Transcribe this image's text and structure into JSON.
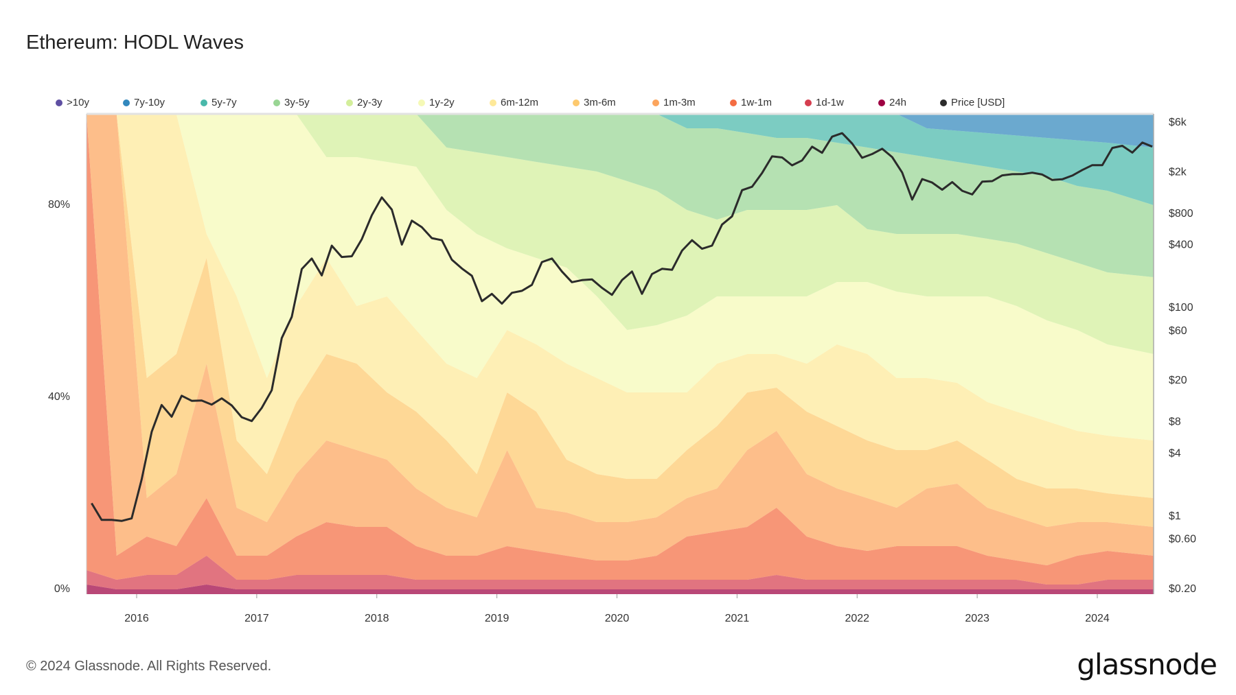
{
  "title": "Ethereum: HODL Waves",
  "footer": {
    "copyright": "© 2024 Glassnode. All Rights Reserved.",
    "logo": "glassnode"
  },
  "chart_data": {
    "type": "area",
    "stacked": true,
    "title": "Ethereum: HODL Waves",
    "legend_position": "top",
    "grid": false,
    "x_tick_labels": [
      "2016",
      "2017",
      "2018",
      "2019",
      "2020",
      "2021",
      "2022",
      "2023",
      "2024"
    ],
    "y_left": {
      "scale": "linear",
      "range": [
        0,
        100
      ],
      "unit": "%",
      "tick_labels": [
        "0%",
        "40%",
        "80%"
      ],
      "tick_values": [
        0,
        40,
        80
      ]
    },
    "y_right": {
      "scale": "log",
      "tick_labels": [
        "$6k",
        "$2k",
        "$800",
        "$400",
        "$100",
        "$60",
        "$20",
        "$8",
        "$4",
        "$1",
        "$0.60",
        "$0.20"
      ],
      "tick_values": [
        6000,
        2000,
        800,
        400,
        100,
        60,
        20,
        8,
        4,
        1,
        0.6,
        0.2
      ]
    },
    "dates": [
      "2015-07-30",
      "2015-11-01",
      "2016-02-01",
      "2016-05-01",
      "2016-08-01",
      "2016-11-01",
      "2017-02-01",
      "2017-05-01",
      "2017-08-01",
      "2017-11-01",
      "2018-02-01",
      "2018-05-01",
      "2018-08-01",
      "2018-11-01",
      "2019-02-01",
      "2019-05-01",
      "2019-08-01",
      "2019-11-01",
      "2020-02-01",
      "2020-05-01",
      "2020-08-01",
      "2020-11-01",
      "2021-02-01",
      "2021-05-01",
      "2021-08-01",
      "2021-11-01",
      "2022-02-01",
      "2022-05-01",
      "2022-08-01",
      "2022-11-01",
      "2023-02-01",
      "2023-05-01",
      "2023-08-01",
      "2023-11-01",
      "2024-02-01",
      "2024-06-20"
    ],
    "series": [
      {
        "name": "24h",
        "color": "#9e0142",
        "values": [
          2,
          1,
          1,
          1,
          2,
          1,
          1,
          1,
          1,
          1,
          1,
          1,
          1,
          1,
          1,
          1,
          1,
          1,
          1,
          1,
          1,
          1,
          1,
          1,
          1,
          1,
          1,
          1,
          1,
          1,
          1,
          1,
          1,
          1,
          1,
          1
        ]
      },
      {
        "name": "1d-1w",
        "color": "#d53e4f",
        "values": [
          3,
          2,
          3,
          3,
          6,
          2,
          2,
          3,
          3,
          3,
          3,
          2,
          2,
          2,
          2,
          2,
          2,
          2,
          2,
          2,
          2,
          2,
          2,
          3,
          2,
          2,
          2,
          2,
          2,
          2,
          2,
          2,
          1,
          1,
          2,
          2
        ]
      },
      {
        "name": "1w-1m",
        "color": "#f46d43",
        "values": [
          95,
          5,
          8,
          6,
          12,
          5,
          5,
          8,
          11,
          10,
          10,
          7,
          5,
          5,
          7,
          6,
          5,
          4,
          4,
          5,
          9,
          10,
          11,
          14,
          9,
          7,
          6,
          7,
          7,
          7,
          5,
          4,
          4,
          6,
          6,
          5
        ]
      },
      {
        "name": "1m-3m",
        "color": "#fca55d",
        "values": [
          0,
          92,
          8,
          15,
          28,
          10,
          7,
          13,
          17,
          16,
          14,
          12,
          10,
          8,
          20,
          9,
          9,
          8,
          8,
          8,
          8,
          9,
          16,
          16,
          13,
          12,
          11,
          8,
          12,
          13,
          10,
          9,
          8,
          7,
          6,
          6
        ]
      },
      {
        "name": "3m-6m",
        "color": "#fdc96e",
        "values": [
          0,
          0,
          25,
          25,
          22,
          14,
          10,
          15,
          18,
          18,
          14,
          16,
          14,
          9,
          12,
          20,
          11,
          10,
          9,
          8,
          10,
          13,
          12,
          9,
          13,
          13,
          12,
          12,
          8,
          9,
          10,
          8,
          8,
          7,
          6,
          6
        ]
      },
      {
        "name": "6m-12m",
        "color": "#fee999",
        "values": [
          0,
          0,
          55,
          50,
          5,
          30,
          20,
          20,
          20,
          12,
          20,
          17,
          16,
          20,
          13,
          14,
          20,
          20,
          18,
          18,
          12,
          13,
          8,
          7,
          10,
          17,
          18,
          15,
          15,
          12,
          12,
          14,
          14,
          12,
          12,
          12
        ]
      },
      {
        "name": "1y-2y",
        "color": "#f5f9b6",
        "values": [
          0,
          0,
          0,
          0,
          25,
          38,
          55,
          40,
          21,
          31,
          28,
          34,
          32,
          30,
          17,
          18,
          20,
          17,
          13,
          14,
          16,
          14,
          12,
          12,
          14,
          13,
          15,
          18,
          17,
          18,
          22,
          22,
          21,
          21,
          19,
          18
        ]
      },
      {
        "name": "2y-3y",
        "color": "#d3ee9b",
        "values": [
          0,
          0,
          0,
          0,
          0,
          0,
          0,
          0,
          9,
          9,
          10,
          11,
          13,
          17,
          19,
          20,
          21,
          26,
          31,
          28,
          22,
          16,
          18,
          18,
          18,
          16,
          11,
          12,
          13,
          13,
          12,
          13,
          14,
          14,
          15,
          16
        ]
      },
      {
        "name": "3y-5y",
        "color": "#99d594",
        "values": [
          0,
          0,
          0,
          0,
          0,
          0,
          0,
          0,
          0,
          0,
          0,
          0,
          7,
          8,
          9,
          10,
          11,
          12,
          14,
          16,
          17,
          19,
          16,
          15,
          15,
          13,
          17,
          17,
          16,
          15,
          15,
          15,
          16,
          16,
          17,
          15
        ]
      },
      {
        "name": "5y-7y",
        "color": "#49b8aa",
        "values": [
          0,
          0,
          0,
          0,
          0,
          0,
          0,
          0,
          0,
          0,
          0,
          0,
          0,
          0,
          0,
          0,
          0,
          0,
          0,
          0,
          3,
          3,
          4,
          5,
          5,
          6,
          7,
          8,
          6,
          6.5,
          7,
          7.5,
          8,
          9.5,
          10,
          12
        ]
      },
      {
        "name": "7y-10y",
        "color": "#3288bd",
        "values": [
          0,
          0,
          0,
          0,
          0,
          0,
          0,
          0,
          0,
          0,
          0,
          0,
          0,
          0,
          0,
          0,
          0,
          0,
          0,
          0,
          0,
          0,
          0,
          0,
          0,
          0,
          0,
          0,
          3,
          3.5,
          4,
          4.5,
          5,
          5.5,
          6,
          7
        ]
      },
      {
        "name": ">10y",
        "color": "#5e4fa2",
        "values": [
          0,
          0,
          0,
          0,
          0,
          0,
          0,
          0,
          0,
          0,
          0,
          0,
          0,
          0,
          0,
          0,
          0,
          0,
          0,
          0,
          0,
          0,
          0,
          0,
          0,
          0,
          0,
          0,
          0,
          0,
          0,
          0,
          0,
          0,
          0,
          0
        ]
      }
    ],
    "price": {
      "name": "Price [USD]",
      "color": "#2b2b2b",
      "start_month": "2015-08",
      "values": [
        1.3,
        0.9,
        0.9,
        0.88,
        0.93,
        2.2,
        6.3,
        11.4,
        8.8,
        14,
        12.5,
        12.6,
        11.5,
        13.2,
        11.3,
        8.7,
        8.0,
        10.7,
        15.8,
        50,
        80,
        230,
        290,
        200,
        385,
        300,
        305,
        445,
        755,
        1120,
        855,
        395,
        670,
        580,
        455,
        435,
        283,
        233,
        198,
        113,
        133,
        107,
        136,
        142,
        162,
        268,
        290,
        218,
        172,
        180,
        183,
        152,
        130,
        180,
        218,
        133,
        206,
        231,
        226,
        345,
        435,
        360,
        386,
        615,
        737,
        1314,
        1417,
        1919,
        2773,
        2707,
        2274,
        2536,
        3433,
        3001,
        4288,
        4631,
        3683,
        2688,
        2922,
        3282,
        2727,
        1942,
        1067,
        1679,
        1554,
        1328,
        1572,
        1296,
        1196,
        1585,
        1605,
        1822,
        1870,
        1874,
        1934,
        1857,
        1646,
        1671,
        1815,
        2051,
        2283,
        2283,
        3340,
        3505,
        3015,
        3762,
        3440
      ]
    },
    "legend": [
      ">10y",
      "7y-10y",
      "5y-7y",
      "3y-5y",
      "2y-3y",
      "1y-2y",
      "6m-12m",
      "3m-6m",
      "1m-3m",
      "1w-1m",
      "1d-1w",
      "24h",
      "Price [USD]"
    ]
  }
}
